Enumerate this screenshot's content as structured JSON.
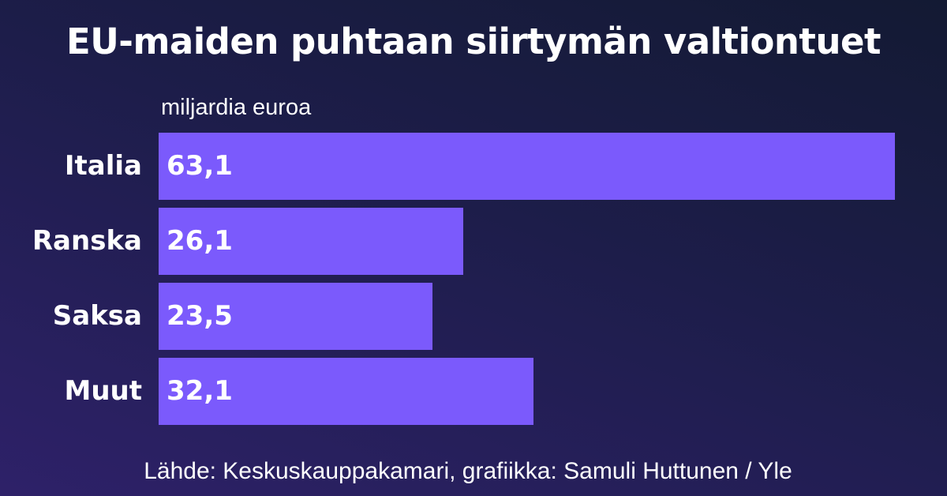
{
  "chart_data": {
    "type": "bar",
    "orientation": "horizontal",
    "title": "EU-maiden puhtaan siirtymän valtiontuet",
    "unit_label": "miljardia euroa",
    "categories": [
      "Italia",
      "Ranska",
      "Saksa",
      "Muut"
    ],
    "values": [
      63.1,
      26.1,
      23.5,
      32.1
    ],
    "value_labels": [
      "63,1",
      "26,1",
      "23,5",
      "32,1"
    ],
    "xlim": [
      0,
      63.1
    ],
    "grid": false,
    "bar_color": "#7b5afc",
    "source": "Lähde: Keskuskauppakamari, grafiikka: Samuli Huttunen / Yle"
  }
}
